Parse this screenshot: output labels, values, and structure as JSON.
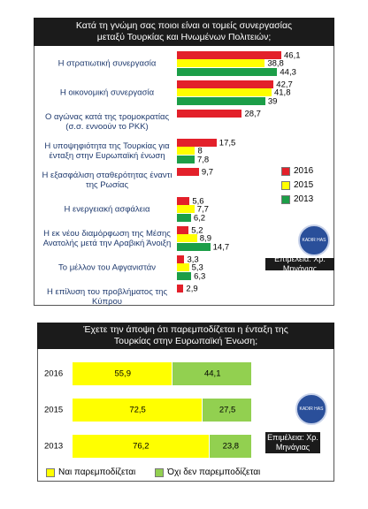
{
  "chart_data": [
    {
      "type": "bar",
      "orientation": "horizontal",
      "title": "Κατά τη γνώμη σας ποιοι είναι οι τομείς συνεργασίας μεταξύ Τουρκίας και Ηνωμένων Πολιτειών;",
      "categories": [
        "Η στρατιωτική συνεργασία",
        "Η οικονομική συνεργασία",
        "Ο αγώνας κατά της τρομοκρατίας (σ.σ. εννοούν το PKK)",
        "Η υποψηφιότητα της Τουρκίας για ένταξη στην Ευρωπαϊκή ένωση",
        "Η εξασφάλιση σταθερότητας έναντι της Ρωσίας",
        "Η ενεργειακή ασφάλεια",
        "Η εκ νέου διαμόρφωση της Μέσης Ανατολής μετά την Αραβική Άνοιξη",
        "Το μέλλον του Αφγανιστάν",
        "Η επίλυση του προβλήματος της Κύπρου"
      ],
      "series": [
        {
          "name": "2016",
          "color": "#e3202a",
          "values": [
            46.1,
            42.7,
            28.7,
            17.5,
            9.7,
            5.6,
            5.2,
            3.3,
            2.9
          ],
          "value_labels": [
            "46,1",
            "42,7",
            "28,7",
            "17,5",
            "9,7",
            "5,6",
            "5,2",
            "3,3",
            "2,9"
          ]
        },
        {
          "name": "2015",
          "color": "#ffff00",
          "values": [
            38.8,
            41.8,
            null,
            8,
            null,
            7.7,
            8.9,
            5.3,
            null
          ],
          "value_labels": [
            "38,8",
            "41,8",
            null,
            "8",
            null,
            "7,7",
            "8,9",
            "5,3",
            null
          ]
        },
        {
          "name": "2013",
          "color": "#1c9e48",
          "values": [
            44.3,
            39,
            null,
            7.8,
            null,
            6.2,
            14.7,
            6.3,
            null
          ],
          "value_labels": [
            "44,3",
            "39",
            null,
            "7,8",
            null,
            "6,2",
            "14,7",
            "6,3",
            null
          ]
        }
      ],
      "legend": "right",
      "annotation": "Επιμέλεια: Χρ. Μηνάγιας",
      "logo_text": "KADIR HAS"
    },
    {
      "type": "stacked_bar",
      "orientation": "horizontal",
      "title": "Έχετε την άποψη ότι παρεμποδίζεται η ένταξη της Τουρκίας στην Ευρωπαϊκή Ένωση;",
      "categories": [
        "2016",
        "2015",
        "2013"
      ],
      "series": [
        {
          "name": "Ναι παρεμποδίζεται",
          "color": "#ffff00",
          "values": [
            55.9,
            72.5,
            76.2
          ],
          "value_labels": [
            "55,9",
            "72,5",
            "76,2"
          ]
        },
        {
          "name": "Όχι δεν παρεμποδίζεται",
          "color": "#92d050",
          "values": [
            44.1,
            27.5,
            23.8
          ],
          "value_labels": [
            "44,1",
            "27,5",
            "23,8"
          ]
        }
      ],
      "legend": "bottom",
      "annotation": "Επιμέλεια: Χρ. Μηνάγιας",
      "logo_text": "KADIR HAS"
    }
  ]
}
